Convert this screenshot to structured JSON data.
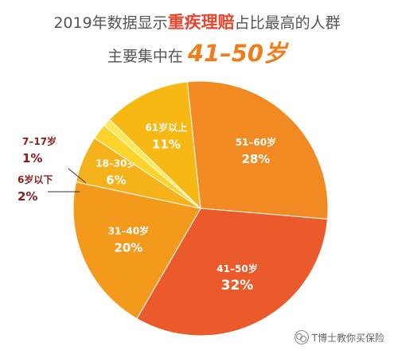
{
  "header": {
    "line1_prefix": "2019年数据显示",
    "line1_highlight": "重疾理赔",
    "line1_suffix": "占比最高的人群",
    "line2_prefix": "主要集中在",
    "line2_highlight": "41–50岁"
  },
  "chart_data": {
    "type": "pie",
    "title": "2019年数据显示重疾理赔占比最高的人群主要集中在41–50岁",
    "slices": [
      {
        "label": "51–60岁",
        "value": 28,
        "value_label": "28%",
        "color": "#f18a22"
      },
      {
        "label": "41–50岁",
        "value": 32,
        "value_label": "32%",
        "color": "#ea5a2b"
      },
      {
        "label": "31–40岁",
        "value": 20,
        "value_label": "20%",
        "color": "#f39a1d"
      },
      {
        "label": "18–30岁",
        "value": 6,
        "value_label": "6%",
        "color": "#f6b21a"
      },
      {
        "label": "6岁以下",
        "value": 2,
        "value_label": "2%",
        "color": "#fbd32a"
      },
      {
        "label": "7–17岁",
        "value": 1,
        "value_label": "1%",
        "color": "#fde85a"
      },
      {
        "label": "61岁以上",
        "value": 11,
        "value_label": "11%",
        "color": "#f7b814"
      }
    ],
    "start_angle_deg": -96,
    "outside_label_color": "#8a1c1c",
    "inside_label_color": "#ffffff"
  },
  "watermark": {
    "text": "T博士教你买保险"
  }
}
